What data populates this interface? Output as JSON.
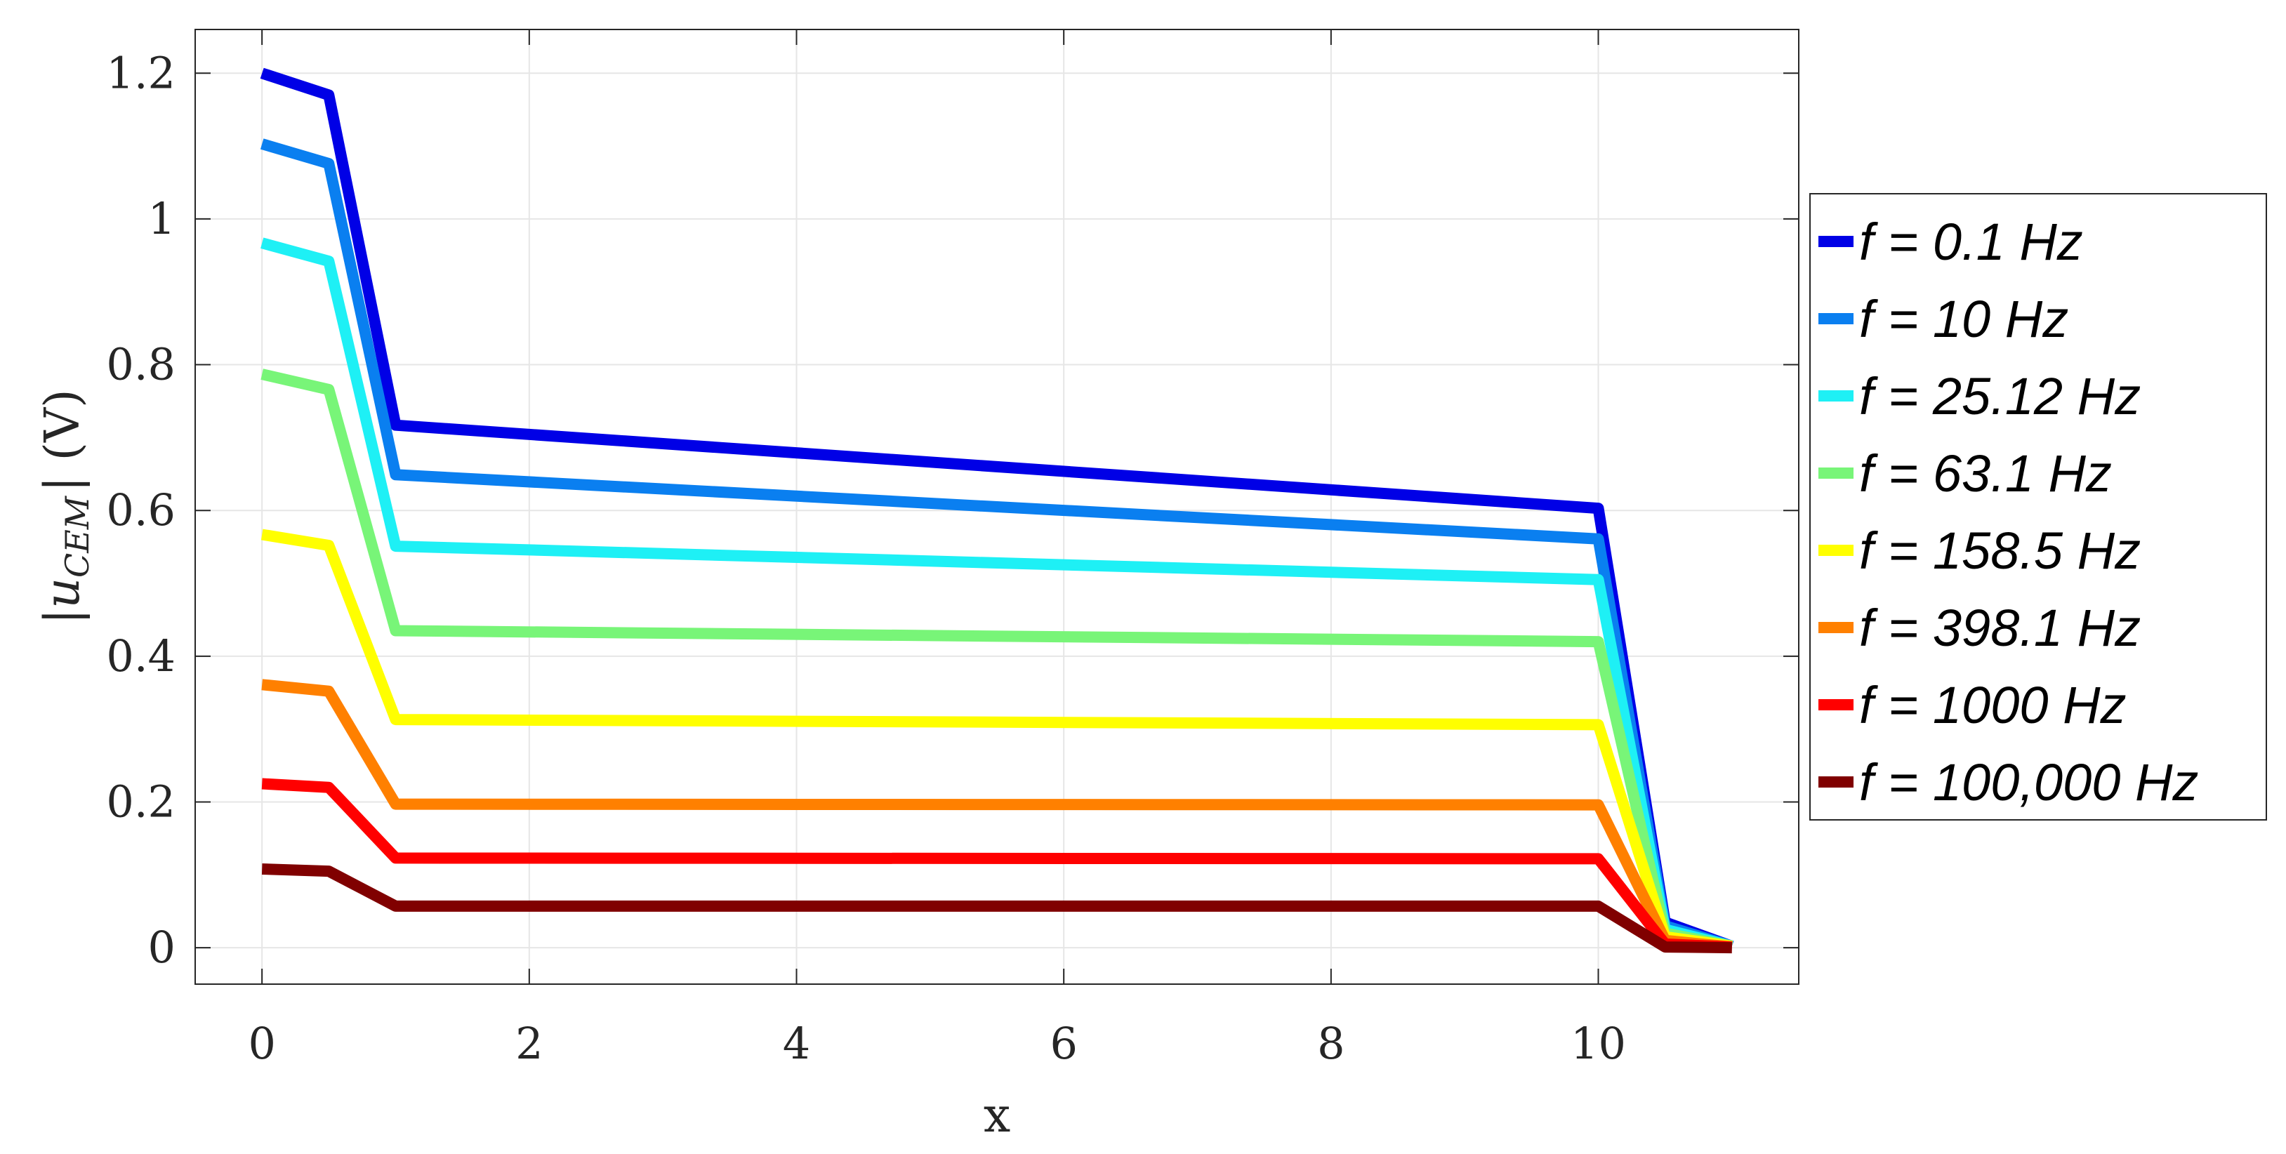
{
  "chart_data": {
    "type": "line",
    "title": "",
    "xlabel": "x",
    "ylabel": "|u_CEM| (V)",
    "ylabel_parts": {
      "open": "|",
      "main": "u",
      "sub": "CEM",
      "close": "| (V)"
    },
    "xlim": [
      -0.5,
      11.5
    ],
    "ylim": [
      -0.05,
      1.26
    ],
    "x_ticks": [
      0,
      2,
      4,
      6,
      8,
      10
    ],
    "x_tick_labels": [
      "0",
      "2",
      "4",
      "6",
      "8",
      "10"
    ],
    "y_ticks": [
      0,
      0.2,
      0.4,
      0.6,
      0.8,
      1,
      1.2
    ],
    "y_tick_labels": [
      "0",
      "0.2",
      "0.4",
      "0.6",
      "0.8",
      "1",
      "1.2"
    ],
    "grid": true,
    "legend_position": "right-outside",
    "x": [
      0,
      0.5,
      1,
      10,
      10.5,
      11
    ],
    "series": [
      {
        "name": "f = 0.1 Hz",
        "color": "#0000e6",
        "values": [
          1.2,
          1.17,
          0.717,
          0.603,
          0.035,
          0.002
        ]
      },
      {
        "name": "f = 10 Hz",
        "color": "#0a7ff0",
        "values": [
          1.103,
          1.076,
          0.649,
          0.561,
          0.03,
          0.002
        ]
      },
      {
        "name": "f = 25.12 Hz",
        "color": "#1ef0f5",
        "values": [
          0.967,
          0.942,
          0.551,
          0.505,
          0.025,
          0.002
        ]
      },
      {
        "name": "f = 63.1 Hz",
        "color": "#78f578",
        "values": [
          0.787,
          0.766,
          0.435,
          0.42,
          0.02,
          0.002
        ]
      },
      {
        "name": "f = 158.5 Hz",
        "color": "#ffff00",
        "values": [
          0.567,
          0.552,
          0.313,
          0.306,
          0.015,
          0.002
        ]
      },
      {
        "name": "f = 398.1 Hz",
        "color": "#ff8000",
        "values": [
          0.361,
          0.352,
          0.197,
          0.196,
          0.01,
          0.001
        ]
      },
      {
        "name": "f = 1000 Hz",
        "color": "#ff0000",
        "values": [
          0.225,
          0.22,
          0.123,
          0.122,
          0.005,
          0.001
        ]
      },
      {
        "name": "f = 100,000 Hz",
        "color": "#800000",
        "values": [
          0.108,
          0.105,
          0.057,
          0.057,
          0.001,
          0.0
        ]
      }
    ]
  }
}
